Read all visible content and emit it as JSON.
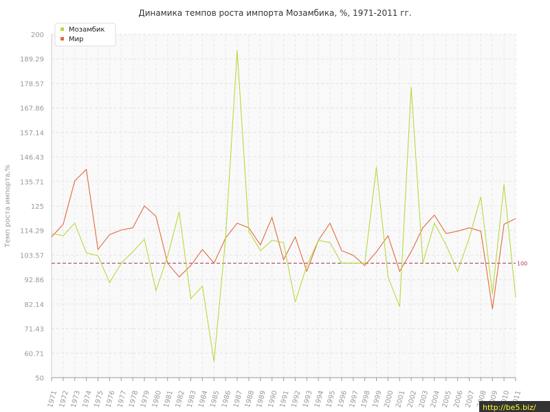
{
  "chart_data": {
    "type": "line",
    "title": "Динамика темпов роста импорта Мозамбика, %, 1971-2011 гг.",
    "xlabel": "",
    "ylabel": "Темп роста импорта,%",
    "ylim": [
      50,
      200
    ],
    "yticks": [
      "50",
      "60.71",
      "71.43",
      "82.14",
      "92.86",
      "103.57",
      "114.29",
      "125",
      "135.71",
      "146.43",
      "157.14",
      "167.86",
      "178.57",
      "189.29",
      "200"
    ],
    "x": [
      "1971",
      "1972",
      "1973",
      "1974",
      "1975",
      "1976",
      "1977",
      "1978",
      "1979",
      "1980",
      "1981",
      "1982",
      "1983",
      "1984",
      "1985",
      "1986",
      "1987",
      "1988",
      "1989",
      "1990",
      "1991",
      "1992",
      "1993",
      "1994",
      "1995",
      "1996",
      "1997",
      "1998",
      "1999",
      "2000",
      "2001",
      "2002",
      "2003",
      "2004",
      "2005",
      "2006",
      "2007",
      "2008",
      "2009",
      "2010",
      "2011"
    ],
    "series": [
      {
        "name": "Мозамбик",
        "color": "#b7d93c",
        "values": [
          113,
          112,
          117.5,
          104.5,
          103.3,
          91.5,
          100,
          105,
          110.5,
          88,
          103,
          122.5,
          84.5,
          90,
          57,
          111,
          193,
          114,
          105.5,
          110,
          109,
          83,
          99,
          110,
          109,
          100,
          100,
          100,
          142,
          94,
          81,
          177,
          100,
          117.5,
          108,
          96.5,
          111,
          129,
          86.5,
          134.5,
          85
        ]
      },
      {
        "name": "Мир",
        "color": "#e0693a",
        "values": [
          111.5,
          117,
          136,
          141,
          106,
          112.5,
          114.5,
          115.5,
          125,
          120.5,
          100,
          94,
          99,
          106,
          100,
          111,
          117.5,
          115.5,
          108,
          120,
          101.5,
          111.5,
          96.5,
          110,
          117.5,
          105.5,
          103.5,
          99,
          105,
          112,
          96.5,
          105,
          115.5,
          121,
          113,
          114,
          115.5,
          114,
          80,
          117,
          119.5
        ]
      }
    ],
    "reference_line": {
      "value": 100,
      "label": "100",
      "color": "#b04060"
    },
    "grid": true,
    "legend": "top-left"
  },
  "watermark": "http://be5.biz/"
}
